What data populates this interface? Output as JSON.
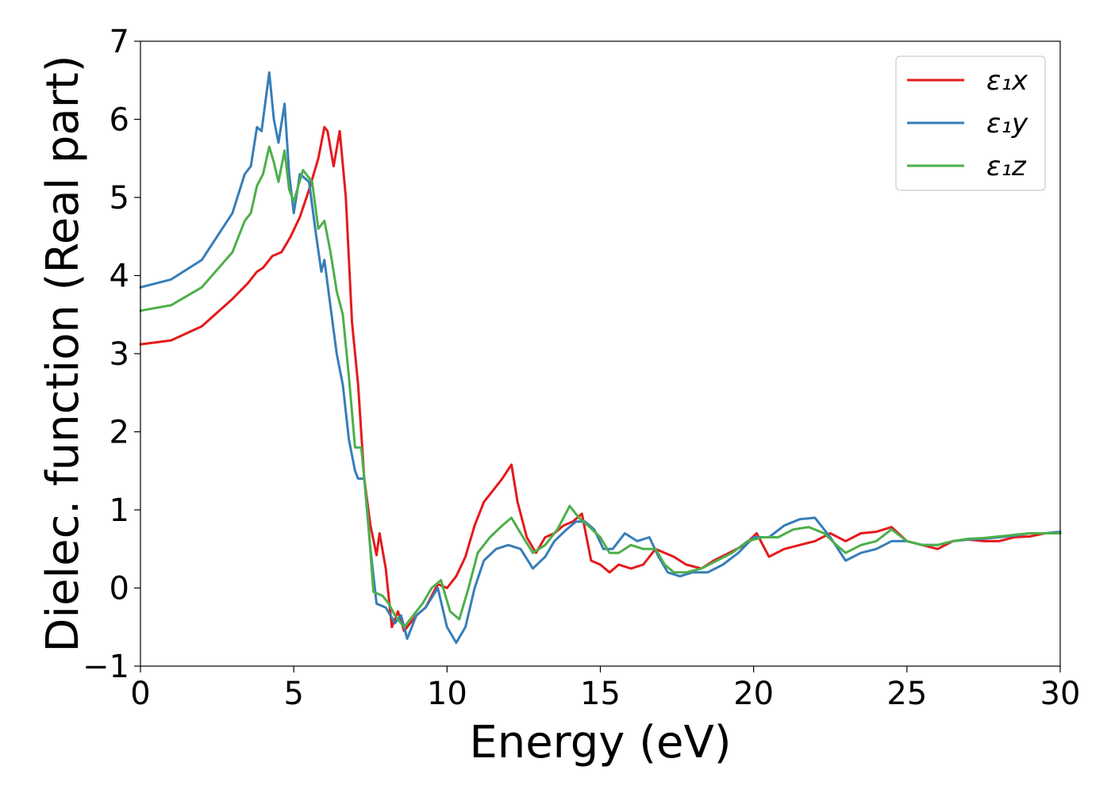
{
  "chart_data": {
    "type": "line",
    "title": "",
    "xlabel": "Energy (eV)",
    "ylabel": "Dielec. function (Real part)",
    "xlim": [
      0,
      30
    ],
    "ylim": [
      -1,
      7
    ],
    "xticks": [
      0,
      5,
      10,
      15,
      20,
      25,
      30
    ],
    "xtick_labels": [
      "0",
      "5",
      "10",
      "15",
      "20",
      "25",
      "30"
    ],
    "yticks": [
      -1,
      0,
      1,
      2,
      3,
      4,
      5,
      6,
      7
    ],
    "ytick_labels": [
      "−1",
      "0",
      "1",
      "2",
      "3",
      "4",
      "5",
      "6",
      "7"
    ],
    "grid": false,
    "legend_position": "top-right",
    "series": [
      {
        "name": "ε₁x",
        "color": "#e41a1c",
        "points": [
          [
            0,
            3.12
          ],
          [
            1,
            3.17
          ],
          [
            2,
            3.35
          ],
          [
            3,
            3.7
          ],
          [
            3.5,
            3.9
          ],
          [
            3.8,
            4.05
          ],
          [
            4.0,
            4.1
          ],
          [
            4.3,
            4.25
          ],
          [
            4.6,
            4.3
          ],
          [
            4.9,
            4.5
          ],
          [
            5.2,
            4.75
          ],
          [
            5.5,
            5.1
          ],
          [
            5.8,
            5.5
          ],
          [
            6.0,
            5.9
          ],
          [
            6.1,
            5.85
          ],
          [
            6.3,
            5.4
          ],
          [
            6.5,
            5.85
          ],
          [
            6.7,
            5.0
          ],
          [
            6.9,
            3.4
          ],
          [
            7.1,
            2.6
          ],
          [
            7.3,
            1.4
          ],
          [
            7.5,
            0.8
          ],
          [
            7.7,
            0.42
          ],
          [
            7.8,
            0.7
          ],
          [
            8.0,
            0.25
          ],
          [
            8.2,
            -0.5
          ],
          [
            8.4,
            -0.3
          ],
          [
            8.6,
            -0.55
          ],
          [
            8.8,
            -0.45
          ],
          [
            9.0,
            -0.35
          ],
          [
            9.3,
            -0.25
          ],
          [
            9.7,
            0.05
          ],
          [
            10.0,
            0.0
          ],
          [
            10.3,
            0.15
          ],
          [
            10.6,
            0.4
          ],
          [
            10.9,
            0.8
          ],
          [
            11.2,
            1.1
          ],
          [
            11.5,
            1.25
          ],
          [
            11.8,
            1.4
          ],
          [
            12.1,
            1.58
          ],
          [
            12.3,
            1.1
          ],
          [
            12.6,
            0.65
          ],
          [
            12.9,
            0.45
          ],
          [
            13.2,
            0.65
          ],
          [
            13.5,
            0.7
          ],
          [
            13.8,
            0.8
          ],
          [
            14.1,
            0.85
          ],
          [
            14.4,
            0.95
          ],
          [
            14.7,
            0.35
          ],
          [
            15.0,
            0.3
          ],
          [
            15.3,
            0.2
          ],
          [
            15.6,
            0.3
          ],
          [
            16.0,
            0.25
          ],
          [
            16.4,
            0.3
          ],
          [
            16.8,
            0.5
          ],
          [
            17.1,
            0.45
          ],
          [
            17.4,
            0.4
          ],
          [
            17.8,
            0.3
          ],
          [
            18.3,
            0.25
          ],
          [
            18.7,
            0.35
          ],
          [
            19.2,
            0.45
          ],
          [
            19.7,
            0.55
          ],
          [
            20.1,
            0.7
          ],
          [
            20.5,
            0.4
          ],
          [
            21.0,
            0.5
          ],
          [
            21.5,
            0.55
          ],
          [
            22.0,
            0.6
          ],
          [
            22.5,
            0.7
          ],
          [
            23.0,
            0.6
          ],
          [
            23.5,
            0.7
          ],
          [
            24.0,
            0.72
          ],
          [
            24.5,
            0.78
          ],
          [
            25.0,
            0.6
          ],
          [
            25.5,
            0.55
          ],
          [
            26.0,
            0.5
          ],
          [
            26.5,
            0.6
          ],
          [
            27.0,
            0.62
          ],
          [
            27.5,
            0.6
          ],
          [
            28.0,
            0.6
          ],
          [
            28.5,
            0.65
          ],
          [
            29.0,
            0.66
          ],
          [
            29.5,
            0.7
          ],
          [
            30,
            0.7
          ]
        ]
      },
      {
        "name": "ε₁y",
        "color": "#377eb8",
        "points": [
          [
            0,
            3.85
          ],
          [
            1,
            3.95
          ],
          [
            2,
            4.2
          ],
          [
            3,
            4.8
          ],
          [
            3.4,
            5.3
          ],
          [
            3.6,
            5.4
          ],
          [
            3.8,
            5.9
          ],
          [
            3.95,
            5.85
          ],
          [
            4.1,
            6.3
          ],
          [
            4.2,
            6.6
          ],
          [
            4.35,
            6.0
          ],
          [
            4.5,
            5.7
          ],
          [
            4.7,
            6.2
          ],
          [
            4.85,
            5.3
          ],
          [
            5.0,
            4.8
          ],
          [
            5.2,
            5.3
          ],
          [
            5.5,
            5.2
          ],
          [
            5.7,
            4.6
          ],
          [
            5.9,
            4.05
          ],
          [
            6.0,
            4.2
          ],
          [
            6.2,
            3.6
          ],
          [
            6.4,
            3.0
          ],
          [
            6.6,
            2.6
          ],
          [
            6.8,
            1.9
          ],
          [
            7.0,
            1.5
          ],
          [
            7.1,
            1.4
          ],
          [
            7.3,
            1.4
          ],
          [
            7.5,
            0.5
          ],
          [
            7.7,
            -0.2
          ],
          [
            8.0,
            -0.25
          ],
          [
            8.3,
            -0.45
          ],
          [
            8.5,
            -0.35
          ],
          [
            8.7,
            -0.65
          ],
          [
            9.0,
            -0.35
          ],
          [
            9.3,
            -0.25
          ],
          [
            9.7,
            0.0
          ],
          [
            10.0,
            -0.5
          ],
          [
            10.3,
            -0.7
          ],
          [
            10.6,
            -0.5
          ],
          [
            10.9,
            0.0
          ],
          [
            11.2,
            0.35
          ],
          [
            11.6,
            0.5
          ],
          [
            12.0,
            0.55
          ],
          [
            12.4,
            0.5
          ],
          [
            12.8,
            0.25
          ],
          [
            13.2,
            0.4
          ],
          [
            13.5,
            0.6
          ],
          [
            13.9,
            0.75
          ],
          [
            14.2,
            0.85
          ],
          [
            14.5,
            0.85
          ],
          [
            14.8,
            0.75
          ],
          [
            15.1,
            0.5
          ],
          [
            15.4,
            0.5
          ],
          [
            15.8,
            0.7
          ],
          [
            16.2,
            0.6
          ],
          [
            16.6,
            0.65
          ],
          [
            16.9,
            0.4
          ],
          [
            17.2,
            0.2
          ],
          [
            17.6,
            0.15
          ],
          [
            18.0,
            0.2
          ],
          [
            18.5,
            0.2
          ],
          [
            19.0,
            0.3
          ],
          [
            19.5,
            0.45
          ],
          [
            20.0,
            0.65
          ],
          [
            20.5,
            0.65
          ],
          [
            21.0,
            0.8
          ],
          [
            21.5,
            0.88
          ],
          [
            22.0,
            0.9
          ],
          [
            22.5,
            0.65
          ],
          [
            23.0,
            0.35
          ],
          [
            23.5,
            0.45
          ],
          [
            24.0,
            0.5
          ],
          [
            24.5,
            0.6
          ],
          [
            25.0,
            0.6
          ],
          [
            25.5,
            0.55
          ],
          [
            26.0,
            0.55
          ],
          [
            26.5,
            0.6
          ],
          [
            27.0,
            0.62
          ],
          [
            27.5,
            0.63
          ],
          [
            28.0,
            0.65
          ],
          [
            28.5,
            0.67
          ],
          [
            29.0,
            0.7
          ],
          [
            29.5,
            0.7
          ],
          [
            30,
            0.72
          ]
        ]
      },
      {
        "name": "ε₁z",
        "color": "#4daf4a",
        "points": [
          [
            0,
            3.55
          ],
          [
            1,
            3.62
          ],
          [
            2,
            3.85
          ],
          [
            3,
            4.3
          ],
          [
            3.4,
            4.7
          ],
          [
            3.6,
            4.8
          ],
          [
            3.8,
            5.15
          ],
          [
            4.0,
            5.3
          ],
          [
            4.2,
            5.65
          ],
          [
            4.35,
            5.45
          ],
          [
            4.5,
            5.2
          ],
          [
            4.7,
            5.6
          ],
          [
            4.85,
            5.1
          ],
          [
            5.0,
            4.95
          ],
          [
            5.3,
            5.35
          ],
          [
            5.6,
            5.2
          ],
          [
            5.8,
            4.6
          ],
          [
            6.0,
            4.7
          ],
          [
            6.2,
            4.3
          ],
          [
            6.4,
            3.8
          ],
          [
            6.6,
            3.5
          ],
          [
            6.8,
            2.7
          ],
          [
            7.0,
            1.8
          ],
          [
            7.2,
            1.8
          ],
          [
            7.4,
            1.0
          ],
          [
            7.6,
            -0.05
          ],
          [
            7.9,
            -0.1
          ],
          [
            8.1,
            -0.2
          ],
          [
            8.3,
            -0.35
          ],
          [
            8.6,
            -0.5
          ],
          [
            8.9,
            -0.35
          ],
          [
            9.2,
            -0.2
          ],
          [
            9.5,
            0.0
          ],
          [
            9.8,
            0.1
          ],
          [
            10.1,
            -0.3
          ],
          [
            10.4,
            -0.4
          ],
          [
            10.7,
            0.0
          ],
          [
            11.0,
            0.45
          ],
          [
            11.4,
            0.65
          ],
          [
            11.8,
            0.8
          ],
          [
            12.1,
            0.9
          ],
          [
            12.4,
            0.7
          ],
          [
            12.8,
            0.45
          ],
          [
            13.2,
            0.55
          ],
          [
            13.6,
            0.75
          ],
          [
            14.0,
            1.05
          ],
          [
            14.3,
            0.9
          ],
          [
            14.6,
            0.8
          ],
          [
            15.0,
            0.65
          ],
          [
            15.3,
            0.45
          ],
          [
            15.6,
            0.45
          ],
          [
            16.0,
            0.55
          ],
          [
            16.4,
            0.5
          ],
          [
            16.8,
            0.5
          ],
          [
            17.1,
            0.3
          ],
          [
            17.4,
            0.2
          ],
          [
            17.8,
            0.2
          ],
          [
            18.3,
            0.25
          ],
          [
            18.8,
            0.35
          ],
          [
            19.3,
            0.45
          ],
          [
            19.8,
            0.6
          ],
          [
            20.3,
            0.65
          ],
          [
            20.8,
            0.65
          ],
          [
            21.3,
            0.75
          ],
          [
            21.8,
            0.78
          ],
          [
            22.3,
            0.7
          ],
          [
            22.7,
            0.55
          ],
          [
            23.0,
            0.45
          ],
          [
            23.5,
            0.55
          ],
          [
            24.0,
            0.6
          ],
          [
            24.5,
            0.75
          ],
          [
            25.0,
            0.6
          ],
          [
            25.5,
            0.55
          ],
          [
            26.0,
            0.55
          ],
          [
            26.5,
            0.6
          ],
          [
            27.0,
            0.63
          ],
          [
            27.5,
            0.64
          ],
          [
            28.0,
            0.66
          ],
          [
            28.5,
            0.68
          ],
          [
            29.0,
            0.7
          ],
          [
            29.5,
            0.7
          ],
          [
            30,
            0.7
          ]
        ]
      }
    ]
  }
}
